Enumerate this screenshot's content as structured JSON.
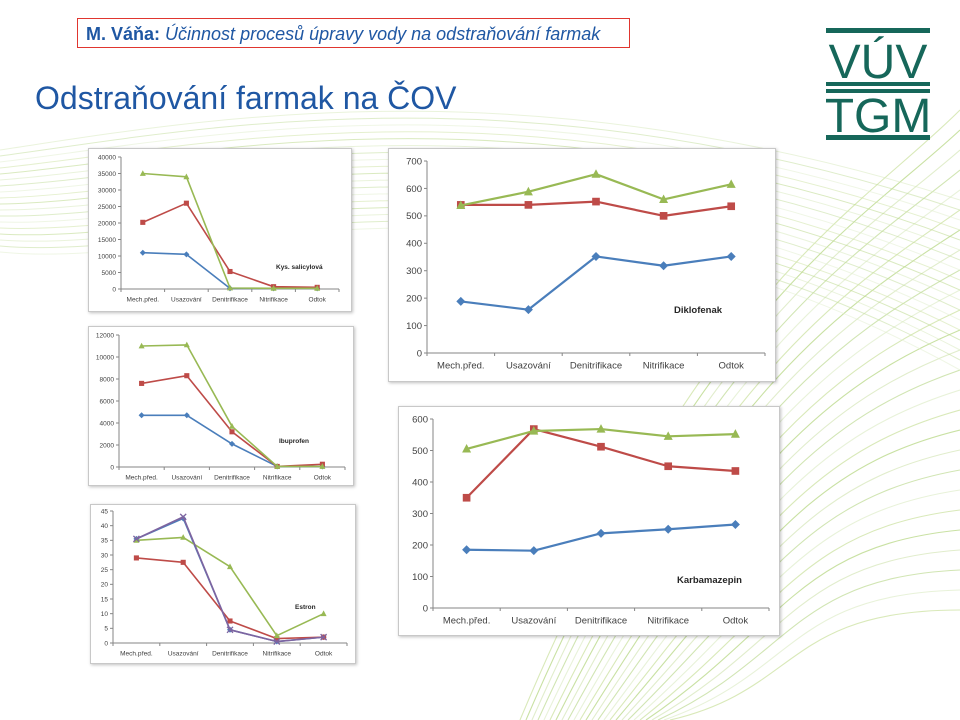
{
  "header": {
    "author": "M. Váňa:",
    "title": "Účinnost procesů úpravy vody na odstraňování farmak"
  },
  "page_title": "Odstraňování farmak na ČOV",
  "logo": {
    "line1": "VÚV",
    "line2": "TGM"
  },
  "colors": {
    "blue": "#4a7ebb",
    "red": "#be4b48",
    "green": "#98b954",
    "purple": "#7e64a0",
    "title_blue": "#1f57a3",
    "header_border": "#e0362f"
  },
  "chart_data": [
    {
      "type": "line",
      "id": "salicylova",
      "annotation": "Kys. salicylová",
      "categories": [
        "Mech.před.",
        "Usazování",
        "Denitrifikace",
        "Nitrifikace",
        "Odtok"
      ],
      "ylim": [
        0,
        40000
      ],
      "yticks": [
        0,
        5000,
        10000,
        15000,
        20000,
        25000,
        30000,
        35000,
        40000
      ],
      "series": [
        {
          "color": "blue",
          "marker": "diamond",
          "values": [
            11000,
            10500,
            200,
            200,
            200
          ]
        },
        {
          "color": "red",
          "marker": "square",
          "values": [
            20200,
            26000,
            5300,
            700,
            500
          ]
        },
        {
          "color": "green",
          "marker": "triangle",
          "values": [
            35000,
            34000,
            300,
            200,
            200
          ]
        }
      ]
    },
    {
      "type": "line",
      "id": "diklofenak",
      "annotation": "Diklofenak",
      "categories": [
        "Mech.před.",
        "Usazování",
        "Denitrifikace",
        "Nitrifikace",
        "Odtok"
      ],
      "ylim": [
        0,
        700
      ],
      "yticks": [
        0,
        100,
        200,
        300,
        400,
        500,
        600,
        700
      ],
      "series": [
        {
          "color": "blue",
          "marker": "diamond",
          "values": [
            188,
            158,
            352,
            318,
            352
          ]
        },
        {
          "color": "red",
          "marker": "square",
          "values": [
            540,
            540,
            552,
            500,
            535
          ]
        },
        {
          "color": "green",
          "marker": "triangle",
          "values": [
            538,
            588,
            652,
            560,
            615
          ]
        }
      ]
    },
    {
      "type": "line",
      "id": "ibuprofen",
      "annotation": "Ibuprofen",
      "categories": [
        "Mech.před.",
        "Usazování",
        "Denitrifikace",
        "Nitrifikace",
        "Odtok"
      ],
      "ylim": [
        0,
        12000
      ],
      "yticks": [
        0,
        2000,
        4000,
        6000,
        8000,
        10000,
        12000
      ],
      "series": [
        {
          "color": "blue",
          "marker": "diamond",
          "values": [
            4700,
            4700,
            2100,
            50,
            50
          ]
        },
        {
          "color": "red",
          "marker": "square",
          "values": [
            7600,
            8300,
            3200,
            50,
            250
          ]
        },
        {
          "color": "green",
          "marker": "triangle",
          "values": [
            11000,
            11100,
            3700,
            50,
            50
          ]
        }
      ]
    },
    {
      "type": "line",
      "id": "karbamazepin",
      "annotation": "Karbamazepin",
      "categories": [
        "Mech.před.",
        "Usazování",
        "Denitrifikace",
        "Nitrifikace",
        "Odtok"
      ],
      "ylim": [
        0,
        600
      ],
      "yticks": [
        0,
        100,
        200,
        300,
        400,
        500,
        600
      ],
      "series": [
        {
          "color": "blue",
          "marker": "diamond",
          "values": [
            185,
            182,
            237,
            250,
            265
          ]
        },
        {
          "color": "red",
          "marker": "square",
          "values": [
            350,
            568,
            512,
            450,
            435
          ]
        },
        {
          "color": "green",
          "marker": "triangle",
          "values": [
            505,
            562,
            568,
            545,
            552
          ]
        }
      ]
    },
    {
      "type": "line",
      "id": "estron",
      "annotation": "Estron",
      "categories": [
        "Mech.před.",
        "Usazování",
        "Denitrifikace",
        "Nitrifikace",
        "Odtok"
      ],
      "ylim": [
        0,
        45
      ],
      "yticks": [
        0,
        5,
        10,
        15,
        20,
        25,
        30,
        35,
        40,
        45
      ],
      "series": [
        {
          "color": "blue",
          "marker": "diamond",
          "values": [
            35.5,
            42.5,
            4.5,
            0.5,
            2.0
          ]
        },
        {
          "color": "red",
          "marker": "square",
          "values": [
            29.0,
            27.5,
            7.5,
            1.5,
            2.0
          ]
        },
        {
          "color": "green",
          "marker": "triangle",
          "values": [
            35.0,
            36.0,
            26.0,
            2.5,
            10.0
          ]
        },
        {
          "color": "purple",
          "marker": "x",
          "values": [
            35.5,
            43.0,
            4.5,
            0.5,
            2.0
          ]
        }
      ]
    }
  ]
}
